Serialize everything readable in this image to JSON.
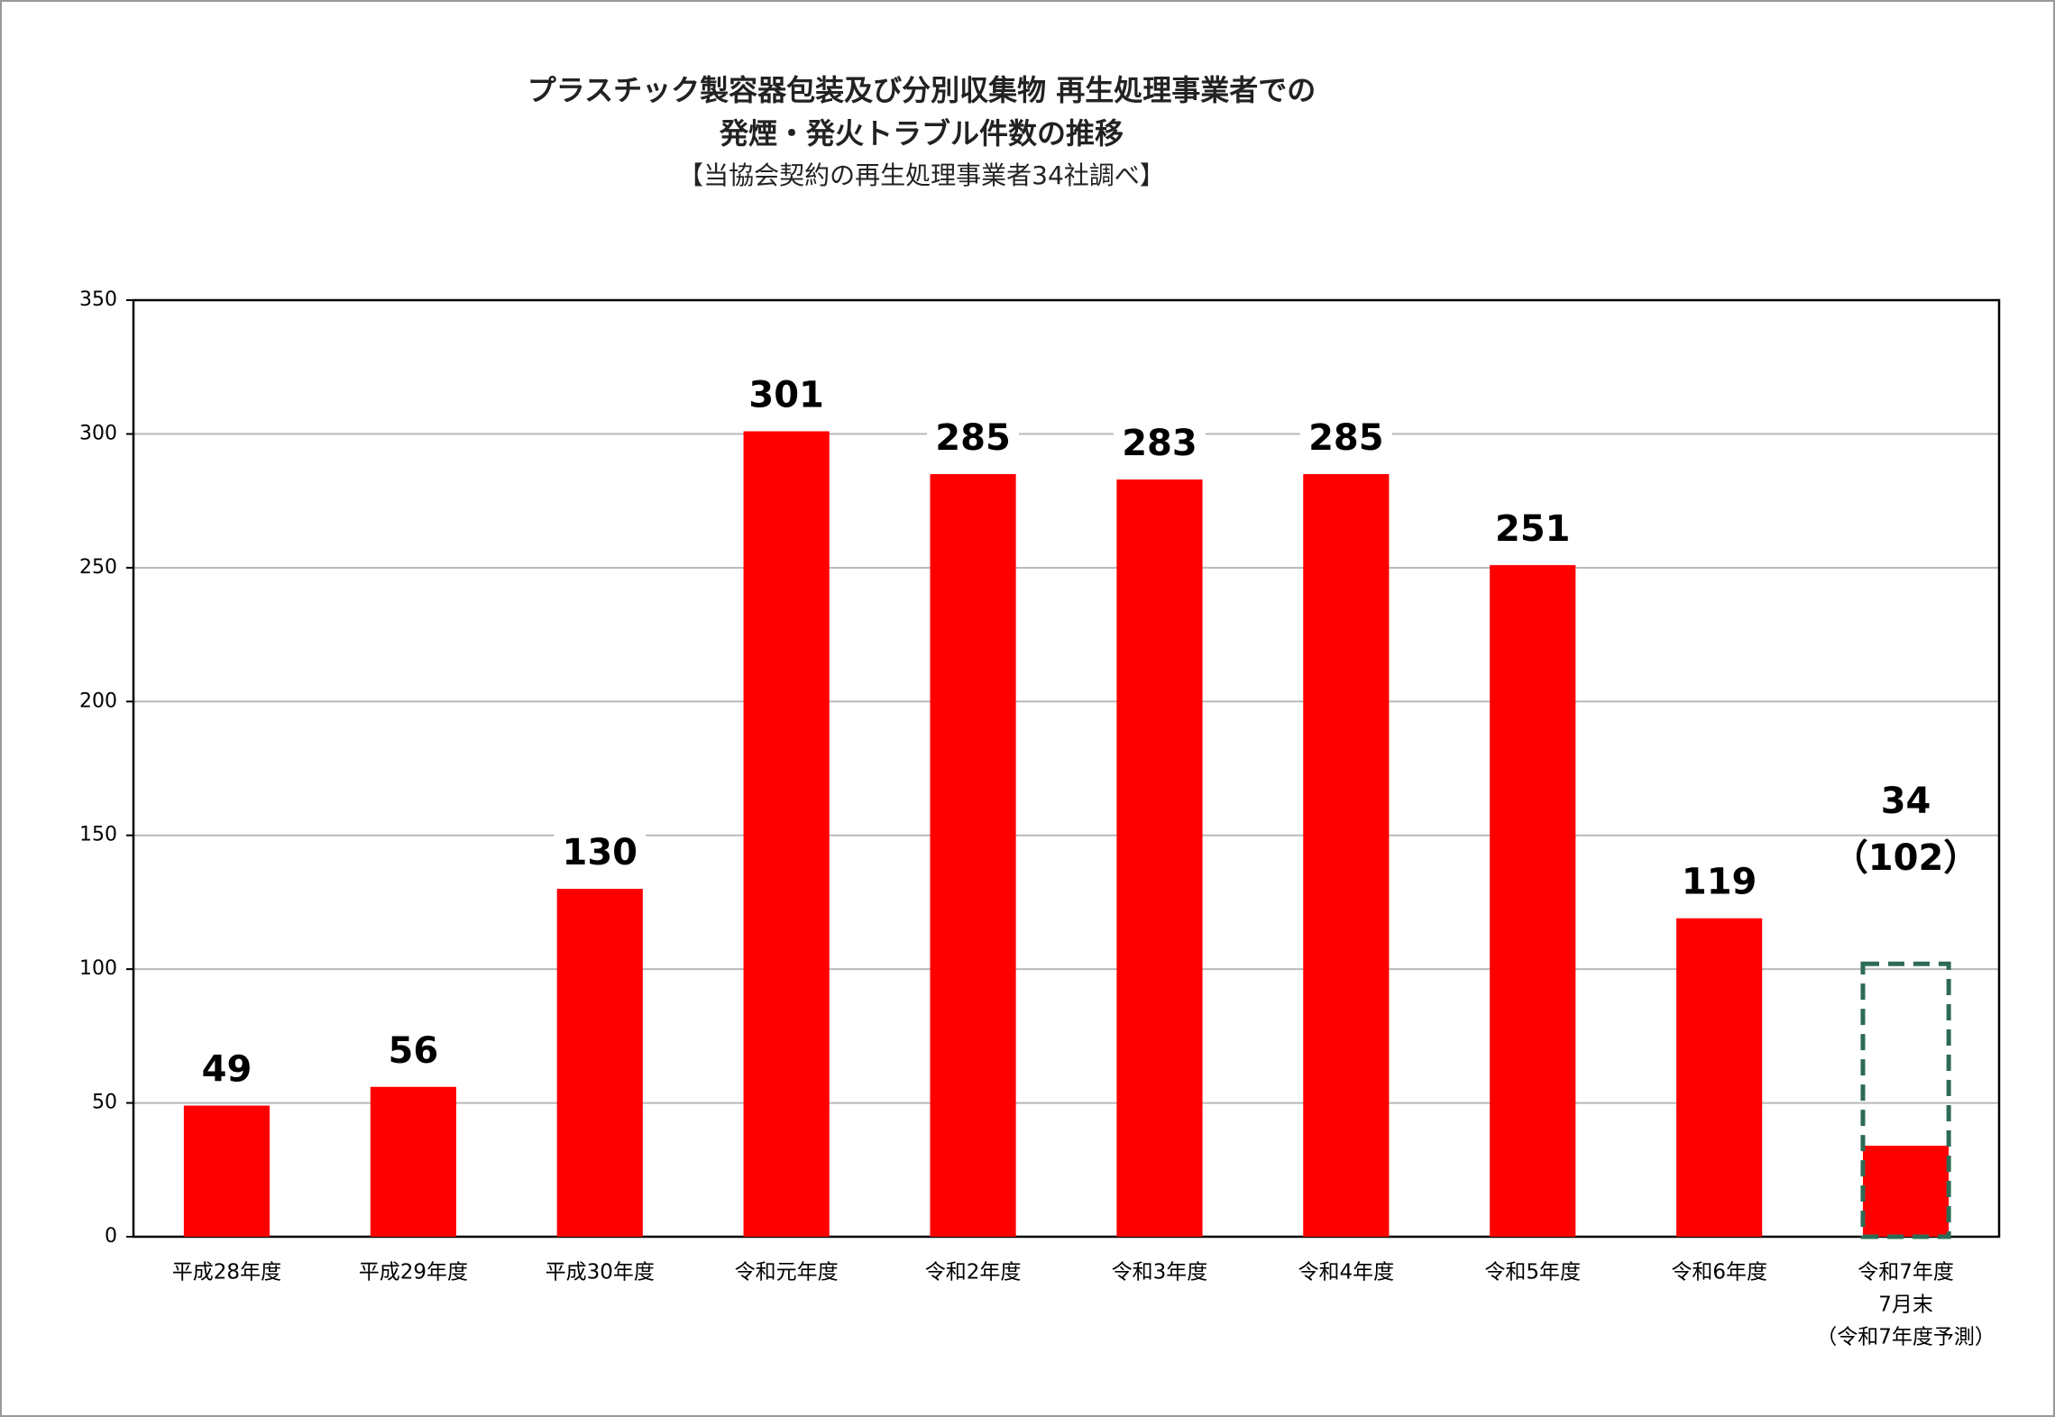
{
  "chart_data": {
    "type": "bar",
    "title": [
      "プラスチック製容器包装及び分別収集物 再生処理事業者での",
      "発煙・発火トラブル件数の推移"
    ],
    "subtitle": "【当協会契約の再生処理事業者34社調べ】",
    "categories": [
      [
        "平成28年度"
      ],
      [
        "平成29年度"
      ],
      [
        "平成30年度"
      ],
      [
        "令和元年度"
      ],
      [
        "令和2年度"
      ],
      [
        "令和3年度"
      ],
      [
        "令和4年度"
      ],
      [
        "令和5年度"
      ],
      [
        "令和6年度"
      ],
      [
        "令和7年度",
        "7月末",
        "（令和7年度予測）"
      ]
    ],
    "values": [
      49,
      56,
      130,
      301,
      285,
      283,
      285,
      251,
      119,
      34
    ],
    "color": "#ff0000",
    "forecast_values": [
      null,
      null,
      null,
      null,
      null,
      null,
      null,
      null,
      null,
      102
    ],
    "forecast_value_labels": [
      null,
      null,
      null,
      null,
      null,
      null,
      null,
      null,
      null,
      "（102）"
    ],
    "forecast_color": "#2e6b55",
    "ylim": [
      0,
      350
    ],
    "yticks": [
      0,
      50,
      100,
      150,
      200,
      250,
      300,
      350
    ],
    "grid": true
  }
}
